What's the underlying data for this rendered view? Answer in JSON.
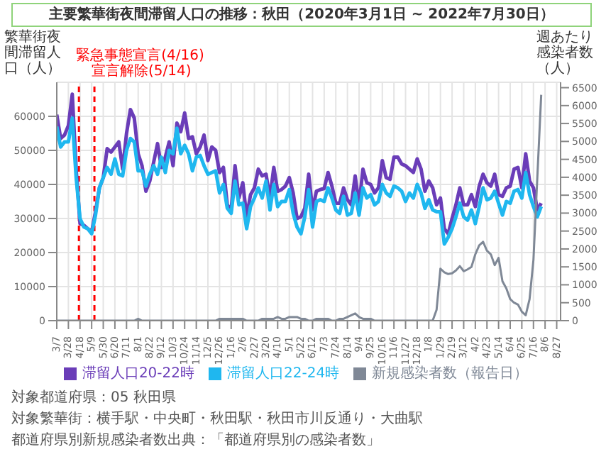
{
  "chart_data": {
    "type": "line",
    "title": "主要繁華街夜間滞留人口の推移：秋田（2020年3月1日 ~ 2022年7月30日）",
    "ylabel": "繁華街夜間滞留人口（人）",
    "y2label": "週あたり感染者数（人）",
    "annotations": [
      "対象都道府県：05 秋田県",
      "対象繁華街：横手駅・中央町・秋田駅・秋田市川反通り・大曲駅",
      "都道府県別新規感染者数出典：「都道府県別の感染者数」"
    ],
    "x": [
      "2020-03-07",
      "2020-03-14",
      "2020-03-21",
      "2020-03-28",
      "2020-04-04",
      "2020-04-11",
      "2020-04-18",
      "2020-04-25",
      "2020-05-02",
      "2020-05-09",
      "2020-05-16",
      "2020-05-23",
      "2020-05-30",
      "2020-06-06",
      "2020-06-13",
      "2020-06-20",
      "2020-06-27",
      "2020-07-04",
      "2020-07-11",
      "2020-07-18",
      "2020-07-25",
      "2020-08-01",
      "2020-08-08",
      "2020-08-15",
      "2020-08-22",
      "2020-08-29",
      "2020-09-05",
      "2020-09-12",
      "2020-09-19",
      "2020-09-26",
      "2020-10-03",
      "2020-10-10",
      "2020-10-17",
      "2020-10-24",
      "2020-10-31",
      "2020-11-07",
      "2020-11-14",
      "2020-11-21",
      "2020-11-28",
      "2020-12-05",
      "2020-12-12",
      "2020-12-19",
      "2020-12-26",
      "2021-01-02",
      "2021-01-09",
      "2021-01-16",
      "2021-01-23",
      "2021-01-30",
      "2021-02-06",
      "2021-02-13",
      "2021-02-20",
      "2021-02-27",
      "2021-03-06",
      "2021-03-13",
      "2021-03-20",
      "2021-03-27",
      "2021-04-03",
      "2021-04-10",
      "2021-04-17",
      "2021-04-24",
      "2021-05-01",
      "2021-05-08",
      "2021-05-15",
      "2021-05-22",
      "2021-05-29",
      "2021-06-05",
      "2021-06-12",
      "2021-06-19",
      "2021-06-26",
      "2021-07-03",
      "2021-07-10",
      "2021-07-17",
      "2021-07-24",
      "2021-07-31",
      "2021-08-07",
      "2021-08-14",
      "2021-08-21",
      "2021-08-28",
      "2021-09-04",
      "2021-09-11",
      "2021-09-18",
      "2021-09-25",
      "2021-10-02",
      "2021-10-09",
      "2021-10-16",
      "2021-10-23",
      "2021-10-30",
      "2021-11-06",
      "2021-11-13",
      "2021-11-20",
      "2021-11-27",
      "2021-12-04",
      "2021-12-11",
      "2021-12-18",
      "2021-12-25",
      "2022-01-01",
      "2022-01-08",
      "2022-01-15",
      "2022-01-22",
      "2022-01-29",
      "2022-02-05",
      "2022-02-12",
      "2022-02-19",
      "2022-02-26",
      "2022-03-05",
      "2022-03-12",
      "2022-03-19",
      "2022-03-26",
      "2022-04-02",
      "2022-04-09",
      "2022-04-16",
      "2022-04-23",
      "2022-04-30",
      "2022-05-07",
      "2022-05-14",
      "2022-05-21",
      "2022-05-28",
      "2022-06-04",
      "2022-06-11",
      "2022-06-18",
      "2022-06-25",
      "2022-07-02",
      "2022-07-09",
      "2022-07-16",
      "2022-07-23",
      "2022-07-30"
    ],
    "series": [
      {
        "name": "滞留人口20-22時",
        "color": "#6a3db8",
        "values": [
          60500,
          53500,
          54500,
          57300,
          66500,
          44500,
          28500,
          28000,
          27000,
          26000,
          32000,
          39000,
          42000,
          50500,
          49500,
          51000,
          52500,
          44500,
          55000,
          62000,
          59500,
          49000,
          45500,
          38000,
          41000,
          46500,
          52000,
          45000,
          48000,
          52500,
          45500,
          58000,
          55500,
          61000,
          53500,
          54000,
          49000,
          51000,
          54500,
          47000,
          51000,
          50000,
          43500,
          45000,
          34000,
          32500,
          45500,
          36000,
          40500,
          30500,
          37000,
          39000,
          44500,
          42500,
          43000,
          36000,
          45000,
          38000,
          38500,
          39500,
          42000,
          37500,
          30000,
          30500,
          33000,
          43000,
          32500,
          38000,
          38500,
          38800,
          43500,
          39500,
          34500,
          34500,
          39000,
          35500,
          34000,
          42500,
          34000,
          44500,
          40500,
          40000,
          37500,
          39000,
          47000,
          42000,
          41500,
          48000,
          48000,
          46000,
          45500,
          44500,
          43500,
          47500,
          44500,
          38000,
          41000,
          39000,
          34000,
          36000,
          27000,
          25500,
          30000,
          34000,
          39000,
          34000,
          34000,
          37000,
          33500,
          39500,
          43000,
          40500,
          39500,
          43000,
          37000,
          36500,
          39000,
          39500,
          44500,
          45000,
          39000,
          49000,
          41000,
          39000,
          32500,
          34500
        ]
      },
      {
        "name": "滞留人口22-24時",
        "color": "#1fb7ef",
        "values": [
          57000,
          51000,
          52500,
          52500,
          59500,
          42000,
          30000,
          27500,
          27000,
          25500,
          31000,
          39000,
          42000,
          45000,
          43000,
          47500,
          43000,
          42500,
          50000,
          53500,
          52500,
          44000,
          44000,
          39500,
          43000,
          45500,
          43000,
          48000,
          43500,
          50000,
          49000,
          56500,
          49000,
          51500,
          49000,
          44000,
          48000,
          48500,
          45500,
          43000,
          43500,
          44000,
          37500,
          40000,
          33000,
          31500,
          41000,
          34000,
          34500,
          27000,
          33500,
          36000,
          39000,
          36000,
          41000,
          32500,
          40000,
          33500,
          35000,
          35000,
          38500,
          31500,
          27500,
          25500,
          30500,
          38500,
          27500,
          35000,
          35500,
          35000,
          39000,
          36000,
          32500,
          31500,
          36500,
          31000,
          31500,
          37500,
          31000,
          39000,
          36000,
          37000,
          34000,
          35000,
          40000,
          37500,
          36500,
          39500,
          39000,
          38000,
          35000,
          37500,
          36000,
          40000,
          37500,
          33000,
          35500,
          32500,
          32000,
          32000,
          22500,
          24500,
          27000,
          30500,
          34500,
          30500,
          29500,
          32500,
          28500,
          33500,
          39000,
          35500,
          36000,
          38000,
          34500,
          31000,
          35000,
          34500,
          38000,
          38500,
          36000,
          43500,
          37000,
          33500,
          30500,
          33500
        ]
      },
      {
        "name": "新規感染者数（報告日）",
        "color": "#7f8896",
        "axis": "y2",
        "values": [
          0,
          0,
          0,
          0,
          0,
          0,
          0,
          0,
          0,
          0,
          0,
          0,
          0,
          0,
          0,
          0,
          0,
          0,
          0,
          0,
          0,
          50,
          0,
          0,
          0,
          0,
          0,
          0,
          0,
          0,
          0,
          0,
          0,
          0,
          0,
          0,
          0,
          0,
          0,
          0,
          0,
          0,
          50,
          50,
          50,
          50,
          50,
          50,
          50,
          0,
          0,
          0,
          0,
          50,
          50,
          50,
          50,
          100,
          50,
          50,
          100,
          100,
          100,
          50,
          50,
          0,
          0,
          50,
          50,
          50,
          50,
          0,
          0,
          50,
          50,
          100,
          150,
          200,
          100,
          50,
          50,
          50,
          0,
          0,
          0,
          0,
          0,
          0,
          0,
          0,
          0,
          0,
          0,
          0,
          0,
          0,
          0,
          0,
          300,
          1450,
          1350,
          1300,
          1320,
          1400,
          1520,
          1380,
          1430,
          1500,
          1850,
          2100,
          2200,
          1950,
          1850,
          1550,
          1750,
          1100,
          900,
          600,
          500,
          450,
          250,
          150,
          600,
          1700,
          4000,
          6300
        ]
      }
    ],
    "xlim": [
      "2020-03-07",
      "2022-09-03"
    ],
    "xticks": [
      {
        "value": "2020-03-07",
        "label": "3/7"
      },
      {
        "value": "2020-03-28",
        "label": "3/28"
      },
      {
        "value": "2020-04-18",
        "label": "4/18"
      },
      {
        "value": "2020-05-09",
        "label": "5/9"
      },
      {
        "value": "2020-05-30",
        "label": "5/30"
      },
      {
        "value": "2020-06-20",
        "label": "6/20"
      },
      {
        "value": "2020-07-11",
        "label": "7/11"
      },
      {
        "value": "2020-08-01",
        "label": "8/1"
      },
      {
        "value": "2020-08-22",
        "label": "8/22"
      },
      {
        "value": "2020-09-12",
        "label": "9/12"
      },
      {
        "value": "2020-10-03",
        "label": "10/3"
      },
      {
        "value": "2020-10-24",
        "label": "10/24"
      },
      {
        "value": "2020-11-14",
        "label": "11/14"
      },
      {
        "value": "2020-12-05",
        "label": "12/5"
      },
      {
        "value": "2020-12-26",
        "label": "12/26"
      },
      {
        "value": "2021-01-16",
        "label": "1/16"
      },
      {
        "value": "2021-02-06",
        "label": "2/6"
      },
      {
        "value": "2021-02-27",
        "label": "2/27"
      },
      {
        "value": "2021-03-20",
        "label": "3/20"
      },
      {
        "value": "2021-04-10",
        "label": "4/10"
      },
      {
        "value": "2021-05-01",
        "label": "5/1"
      },
      {
        "value": "2021-05-22",
        "label": "5/22"
      },
      {
        "value": "2021-06-12",
        "label": "6/12"
      },
      {
        "value": "2021-07-03",
        "label": "7/3"
      },
      {
        "value": "2021-07-24",
        "label": "7/24"
      },
      {
        "value": "2021-08-14",
        "label": "8/14"
      },
      {
        "value": "2021-09-04",
        "label": "9/4"
      },
      {
        "value": "2021-09-25",
        "label": "9/25"
      },
      {
        "value": "2021-10-16",
        "label": "10/16"
      },
      {
        "value": "2021-11-06",
        "label": "11/6"
      },
      {
        "value": "2021-11-27",
        "label": "11/27"
      },
      {
        "value": "2021-12-18",
        "label": "12/18"
      },
      {
        "value": "2022-01-08",
        "label": "1/8"
      },
      {
        "value": "2022-01-29",
        "label": "1/29"
      },
      {
        "value": "2022-02-19",
        "label": "2/19"
      },
      {
        "value": "2022-03-12",
        "label": "3/12"
      },
      {
        "value": "2022-04-02",
        "label": "4/2"
      },
      {
        "value": "2022-04-23",
        "label": "4/23"
      },
      {
        "value": "2022-05-14",
        "label": "5/14"
      },
      {
        "value": "2022-06-04",
        "label": "6/4"
      },
      {
        "value": "2022-06-25",
        "label": "6/25"
      },
      {
        "value": "2022-07-16",
        "label": "7/16"
      },
      {
        "value": "2022-08-06",
        "label": "8/6"
      },
      {
        "value": "2022-08-27",
        "label": "8/27"
      }
    ],
    "ylim": [
      0,
      70000
    ],
    "yticks": [
      0,
      10000,
      20000,
      30000,
      40000,
      50000,
      60000
    ],
    "y2lim": [
      0,
      6650
    ],
    "y2ticks": [
      0,
      500,
      1000,
      1500,
      2000,
      2500,
      3000,
      3500,
      4000,
      4500,
      5000,
      5500,
      6000,
      6500
    ],
    "ref_lines": [
      {
        "axis": "x",
        "value": "2020-04-16",
        "label": "緊急事態宣言(4/16)",
        "color": "#ff0000",
        "line_style": "dashed"
      },
      {
        "axis": "x",
        "value": "2020-05-14",
        "label": "宣言解除(5/14)",
        "color": "#ff0000",
        "line_style": "dashed"
      }
    ],
    "grid": true,
    "legend": "bottom",
    "marker": "none",
    "line_style": "solid"
  }
}
